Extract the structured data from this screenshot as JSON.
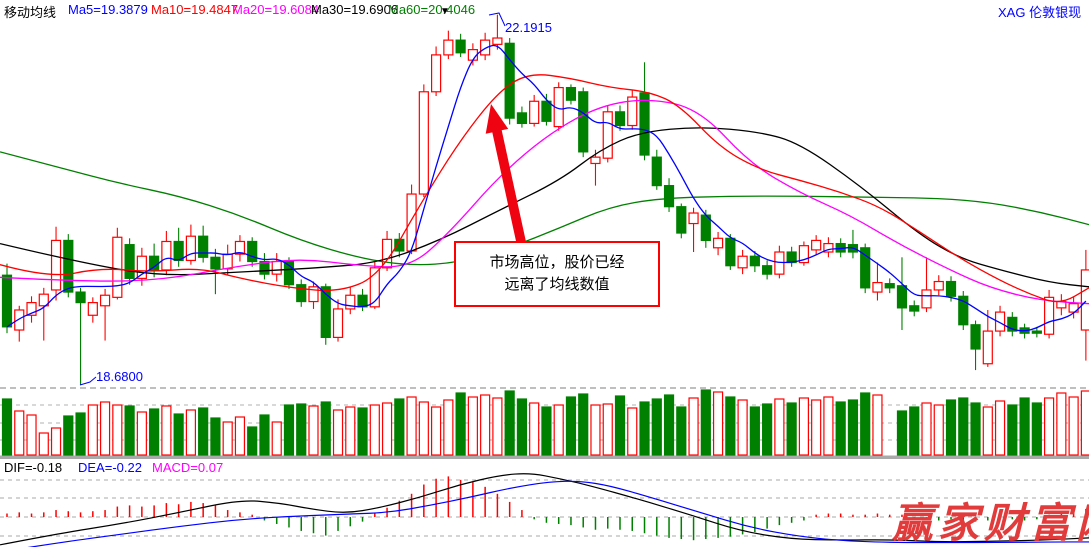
{
  "header": {
    "title": "移动均线",
    "ma_labels": [
      {
        "label": "Ma5=19.3879",
        "color": "#0000ff"
      },
      {
        "label": "Ma10=19.4847",
        "color": "#ff0000"
      },
      {
        "label": "Ma20=19.6084",
        "color": "#ff00ff"
      },
      {
        "label": "Ma30=19.6906",
        "color": "#000000"
      },
      {
        "label": "Ma60=20.4046",
        "color": "#008000"
      }
    ],
    "symbol": "XAG 伦敦银现",
    "symbol_color": "#0000ff",
    "dropdown_icon": "▼"
  },
  "macd_labels": [
    {
      "label": "DIF=-0.18",
      "color": "#000000"
    },
    {
      "label": "DEA=-0.22",
      "color": "#0000ff"
    },
    {
      "label": "MACD=0.07",
      "color": "#ff00ff"
    }
  ],
  "annotations": {
    "high_label": {
      "text": "22.1915",
      "color": "#0000ff",
      "pointer": [
        [
          489,
          15
        ],
        [
          499,
          13
        ],
        [
          505,
          26
        ]
      ]
    },
    "low_label": {
      "text": "18.6800",
      "color": "#0000ff",
      "pointer": [
        [
          80,
          385
        ],
        [
          90,
          382
        ],
        [
          96,
          377
        ]
      ]
    },
    "note_box": {
      "lines": [
        "市场高位，股价已经",
        "远离了均线数值"
      ],
      "border_color": "#ff0000"
    },
    "arrow": {
      "from": [
        522,
        246
      ],
      "to": [
        491,
        104
      ],
      "color": "#f00311"
    },
    "watermark": {
      "text": "赢家财富网",
      "color": "#e23b3b"
    }
  },
  "chart_data": {
    "type": "candlestick+volume+macd",
    "symbol": "XAG 伦敦银现",
    "colors": {
      "up": "#ff0000",
      "down": "#008000"
    },
    "ma_colors": {
      "ma5": "#0000ff",
      "ma10": "#ff0000",
      "ma20": "#ff00ff",
      "ma30": "#000000",
      "ma60": "#008000"
    },
    "price_panel": {
      "ylim": [
        18.65,
        22.16
      ],
      "high_label": 22.1915,
      "low_label": 18.68
    },
    "candles": [
      [
        19.72,
        19.83,
        19.17,
        19.23
      ],
      [
        19.2,
        19.43,
        19.09,
        19.39
      ],
      [
        19.34,
        19.52,
        19.27,
        19.46
      ],
      [
        19.43,
        19.6,
        19.1,
        19.54
      ],
      [
        19.58,
        20.18,
        19.48,
        20.05
      ],
      [
        20.05,
        20.11,
        19.51,
        19.56
      ],
      [
        19.56,
        19.6,
        18.68,
        19.46
      ],
      [
        19.34,
        19.51,
        19.27,
        19.46
      ],
      [
        19.43,
        19.59,
        19.1,
        19.53
      ],
      [
        19.51,
        20.17,
        19.49,
        20.08
      ],
      [
        20.01,
        20.07,
        19.63,
        19.69
      ],
      [
        19.69,
        19.98,
        19.62,
        19.9
      ],
      [
        19.9,
        20.02,
        19.7,
        19.77
      ],
      [
        19.77,
        20.14,
        19.72,
        20.04
      ],
      [
        20.04,
        20.17,
        19.8,
        19.86
      ],
      [
        19.86,
        20.2,
        19.82,
        20.09
      ],
      [
        20.09,
        20.19,
        19.84,
        19.89
      ],
      [
        19.89,
        19.97,
        19.54,
        19.78
      ],
      [
        19.78,
        20.01,
        19.72,
        19.92
      ],
      [
        19.92,
        20.1,
        19.85,
        20.04
      ],
      [
        20.04,
        20.08,
        19.8,
        19.85
      ],
      [
        19.85,
        19.93,
        19.68,
        19.73
      ],
      [
        19.73,
        19.93,
        19.66,
        19.85
      ],
      [
        19.85,
        19.89,
        19.59,
        19.63
      ],
      [
        19.63,
        19.68,
        19.42,
        19.47
      ],
      [
        19.47,
        19.66,
        19.4,
        19.61
      ],
      [
        19.61,
        19.64,
        19.06,
        19.13
      ],
      [
        19.13,
        19.49,
        19.09,
        19.4
      ],
      [
        19.4,
        19.61,
        19.35,
        19.53
      ],
      [
        19.53,
        19.59,
        19.38,
        19.42
      ],
      [
        19.42,
        19.85,
        19.4,
        19.79
      ],
      [
        19.79,
        20.14,
        19.76,
        20.06
      ],
      [
        20.06,
        20.12,
        19.89,
        19.95
      ],
      [
        19.95,
        20.58,
        19.92,
        20.49
      ],
      [
        20.49,
        21.53,
        20.46,
        21.46
      ],
      [
        21.46,
        21.89,
        21.42,
        21.81
      ],
      [
        21.81,
        22.04,
        21.77,
        21.95
      ],
      [
        21.95,
        22.01,
        21.79,
        21.83
      ],
      [
        21.76,
        21.92,
        21.71,
        21.86
      ],
      [
        21.81,
        22.02,
        21.76,
        21.95
      ],
      [
        21.91,
        22.1915,
        21.86,
        21.97
      ],
      [
        21.92,
        21.97,
        21.15,
        21.21
      ],
      [
        21.26,
        21.32,
        21.12,
        21.16
      ],
      [
        21.16,
        21.43,
        21.13,
        21.37
      ],
      [
        21.37,
        21.44,
        21.14,
        21.18
      ],
      [
        21.13,
        21.55,
        21.09,
        21.5
      ],
      [
        21.5,
        21.53,
        21.34,
        21.38
      ],
      [
        21.46,
        21.5,
        20.84,
        20.89
      ],
      [
        20.78,
        20.91,
        20.57,
        20.84
      ],
      [
        20.83,
        21.33,
        20.79,
        21.27
      ],
      [
        21.27,
        21.33,
        21.09,
        21.14
      ],
      [
        21.14,
        21.48,
        21.1,
        21.41
      ],
      [
        21.45,
        21.74,
        20.81,
        20.86
      ],
      [
        20.84,
        20.91,
        20.53,
        20.57
      ],
      [
        20.57,
        20.64,
        20.32,
        20.37
      ],
      [
        20.37,
        20.4,
        20.07,
        20.12
      ],
      [
        20.21,
        20.36,
        19.94,
        20.31
      ],
      [
        20.29,
        20.34,
        19.98,
        20.05
      ],
      [
        19.98,
        20.13,
        19.91,
        20.07
      ],
      [
        20.07,
        20.11,
        19.77,
        19.81
      ],
      [
        19.79,
        19.96,
        19.73,
        19.9
      ],
      [
        19.9,
        19.95,
        19.75,
        19.81
      ],
      [
        19.81,
        19.86,
        19.68,
        19.73
      ],
      [
        19.73,
        20.0,
        19.69,
        19.94
      ],
      [
        19.94,
        19.99,
        19.8,
        19.84
      ],
      [
        19.84,
        20.04,
        19.81,
        20.0
      ],
      [
        19.96,
        20.1,
        19.91,
        20.05
      ],
      [
        19.94,
        20.08,
        19.89,
        20.02
      ],
      [
        20.02,
        20.07,
        19.89,
        19.94
      ],
      [
        20.01,
        20.15,
        19.88,
        19.94
      ],
      [
        19.98,
        20.02,
        19.55,
        19.6
      ],
      [
        19.56,
        19.84,
        19.48,
        19.65
      ],
      [
        19.64,
        19.69,
        19.55,
        19.6
      ],
      [
        19.62,
        19.89,
        19.2,
        19.41
      ],
      [
        19.43,
        19.48,
        19.33,
        19.38
      ],
      [
        19.41,
        19.89,
        19.37,
        19.58
      ],
      [
        19.58,
        19.72,
        19.53,
        19.66
      ],
      [
        19.66,
        19.71,
        19.47,
        19.52
      ],
      [
        19.52,
        19.57,
        19.2,
        19.25
      ],
      [
        19.25,
        19.29,
        18.82,
        19.02
      ],
      [
        18.88,
        19.39,
        18.85,
        19.19
      ],
      [
        19.19,
        19.43,
        19.14,
        19.37
      ],
      [
        19.32,
        19.37,
        19.14,
        19.19
      ],
      [
        19.22,
        19.26,
        19.12,
        19.17
      ],
      [
        19.19,
        19.23,
        19.13,
        19.17
      ],
      [
        19.16,
        19.58,
        19.12,
        19.51
      ],
      [
        19.41,
        19.54,
        19.34,
        19.47
      ],
      [
        19.37,
        19.51,
        19.31,
        19.45
      ],
      [
        19.2,
        19.96,
        18.91,
        19.77
      ]
    ],
    "ma_keypoints": {
      "ma60": [
        [
          0,
          20.89
        ],
        [
          60,
          20.74
        ],
        [
          120,
          20.59
        ],
        [
          180,
          20.47
        ],
        [
          240,
          20.29
        ],
        [
          300,
          20.05
        ],
        [
          360,
          19.88
        ],
        [
          410,
          19.81
        ],
        [
          460,
          19.84
        ],
        [
          510,
          19.98
        ],
        [
          560,
          20.17
        ],
        [
          610,
          20.37
        ],
        [
          660,
          20.45
        ],
        [
          730,
          20.47
        ],
        [
          800,
          20.47
        ],
        [
          870,
          20.46
        ],
        [
          940,
          20.45
        ],
        [
          990,
          20.41
        ],
        [
          1040,
          20.32
        ],
        [
          1089,
          20.2
        ]
      ],
      "ma30": [
        [
          0,
          20.02
        ],
        [
          80,
          19.84
        ],
        [
          160,
          19.71
        ],
        [
          240,
          19.75
        ],
        [
          320,
          19.79
        ],
        [
          380,
          19.84
        ],
        [
          440,
          20.05
        ],
        [
          500,
          20.34
        ],
        [
          560,
          20.62
        ],
        [
          600,
          20.91
        ],
        [
          640,
          21.08
        ],
        [
          700,
          21.13
        ],
        [
          760,
          21.08
        ],
        [
          800,
          20.97
        ],
        [
          860,
          20.57
        ],
        [
          920,
          20.1
        ],
        [
          960,
          19.88
        ],
        [
          1000,
          19.77
        ],
        [
          1050,
          19.65
        ],
        [
          1089,
          19.61
        ]
      ],
      "ma20": [
        [
          0,
          19.7
        ],
        [
          80,
          19.66
        ],
        [
          160,
          19.67
        ],
        [
          240,
          19.81
        ],
        [
          300,
          19.88
        ],
        [
          360,
          19.81
        ],
        [
          410,
          19.79
        ],
        [
          450,
          20.13
        ],
        [
          500,
          20.67
        ],
        [
          550,
          21.07
        ],
        [
          600,
          21.33
        ],
        [
          650,
          21.4
        ],
        [
          700,
          21.29
        ],
        [
          750,
          20.78
        ],
        [
          800,
          20.5
        ],
        [
          850,
          20.29
        ],
        [
          900,
          20.01
        ],
        [
          950,
          19.77
        ],
        [
          990,
          19.6
        ],
        [
          1040,
          19.48
        ],
        [
          1089,
          19.45
        ]
      ],
      "ma10": [
        [
          0,
          19.82
        ],
        [
          50,
          19.69
        ],
        [
          100,
          19.79
        ],
        [
          150,
          19.75
        ],
        [
          200,
          19.79
        ],
        [
          240,
          19.69
        ],
        [
          290,
          19.6
        ],
        [
          340,
          19.56
        ],
        [
          380,
          19.72
        ],
        [
          420,
          20.39
        ],
        [
          460,
          21.0
        ],
        [
          500,
          21.48
        ],
        [
          530,
          21.64
        ],
        [
          570,
          21.59
        ],
        [
          610,
          21.5
        ],
        [
          650,
          21.46
        ],
        [
          680,
          21.33
        ],
        [
          720,
          20.93
        ],
        [
          760,
          20.72
        ],
        [
          800,
          20.62
        ],
        [
          840,
          20.51
        ],
        [
          880,
          20.37
        ],
        [
          920,
          20.13
        ],
        [
          960,
          19.88
        ],
        [
          1000,
          19.67
        ],
        [
          1030,
          19.54
        ],
        [
          1060,
          19.44
        ],
        [
          1089,
          19.6
        ]
      ]
    },
    "volume": {
      "unit": "relative",
      "values": [
        56,
        44,
        40,
        22,
        27,
        39,
        42,
        50,
        53,
        50,
        49,
        43,
        46,
        49,
        41,
        45,
        47,
        37,
        33,
        38,
        28,
        40,
        33,
        50,
        51,
        49,
        53,
        45,
        48,
        47,
        50,
        52,
        56,
        58,
        53,
        48,
        55,
        62,
        58,
        60,
        57,
        64,
        56,
        52,
        48,
        50,
        58,
        61,
        50,
        51,
        59,
        47,
        53,
        56,
        60,
        48,
        57,
        65,
        63,
        58,
        55,
        48,
        51,
        56,
        52,
        57,
        55,
        58,
        53,
        55,
        62,
        60,
        0,
        44,
        48,
        52,
        50,
        55,
        57,
        52,
        48,
        54,
        50,
        57,
        52,
        57,
        62,
        58,
        64
      ]
    },
    "macd": {
      "ylim": [
        -0.26,
        0.34
      ],
      "dif": [
        [
          0,
          -0.24
        ],
        [
          60,
          -0.14
        ],
        [
          120,
          -0.06
        ],
        [
          180,
          0.04
        ],
        [
          240,
          0.15
        ],
        [
          280,
          0.12
        ],
        [
          310,
          0.07
        ],
        [
          345,
          0.03
        ],
        [
          380,
          0.08
        ],
        [
          420,
          0.17
        ],
        [
          460,
          0.28
        ],
        [
          500,
          0.36
        ],
        [
          530,
          0.38
        ],
        [
          560,
          0.33
        ],
        [
          590,
          0.27
        ],
        [
          640,
          0.15
        ],
        [
          690,
          0.02
        ],
        [
          740,
          -0.12
        ],
        [
          790,
          -0.19
        ],
        [
          840,
          -0.2
        ],
        [
          890,
          -0.195
        ],
        [
          940,
          -0.215
        ],
        [
          990,
          -0.21
        ],
        [
          1040,
          -0.2
        ],
        [
          1089,
          -0.18
        ]
      ],
      "dea": [
        [
          0,
          -0.3
        ],
        [
          60,
          -0.22
        ],
        [
          120,
          -0.15
        ],
        [
          180,
          -0.08
        ],
        [
          240,
          -0.02
        ],
        [
          300,
          0.01
        ],
        [
          350,
          0.025
        ],
        [
          390,
          0.04
        ],
        [
          430,
          0.1
        ],
        [
          470,
          0.17
        ],
        [
          510,
          0.25
        ],
        [
          550,
          0.305
        ],
        [
          580,
          0.31
        ],
        [
          610,
          0.27
        ],
        [
          650,
          0.17
        ],
        [
          700,
          0.04
        ],
        [
          750,
          -0.09
        ],
        [
          800,
          -0.17
        ],
        [
          850,
          -0.21
        ],
        [
          900,
          -0.22
        ],
        [
          950,
          -0.22
        ],
        [
          1000,
          -0.22
        ],
        [
          1050,
          -0.215
        ],
        [
          1089,
          -0.215
        ]
      ],
      "hist": [
        0.03,
        0.04,
        0.03,
        0.04,
        0.06,
        0.05,
        0.04,
        0.05,
        0.06,
        0.09,
        0.1,
        0.09,
        0.1,
        0.12,
        0.11,
        0.13,
        0.12,
        0.1,
        0.06,
        0.04,
        0.02,
        -0.03,
        -0.06,
        -0.09,
        -0.12,
        -0.14,
        -0.16,
        -0.12,
        -0.08,
        -0.04,
        0.03,
        0.08,
        0.14,
        0.2,
        0.28,
        0.33,
        0.35,
        0.32,
        0.3,
        0.26,
        0.2,
        0.13,
        0.06,
        -0.02,
        -0.05,
        -0.06,
        -0.07,
        -0.09,
        -0.11,
        -0.1,
        -0.11,
        -0.12,
        -0.14,
        -0.16,
        -0.18,
        -0.19,
        -0.2,
        -0.19,
        -0.18,
        -0.17,
        -0.15,
        -0.13,
        -0.1,
        -0.07,
        -0.05,
        -0.03,
        0.02,
        0.03,
        0.03,
        0.02,
        0.02,
        0.03,
        0.02,
        0.02,
        -0.02,
        -0.02,
        -0.03,
        -0.02,
        -0.03,
        -0.04,
        -0.03,
        -0.02,
        -0.02,
        -0.03,
        -0.02,
        0.02,
        0.03,
        0.04,
        0.07
      ]
    }
  }
}
